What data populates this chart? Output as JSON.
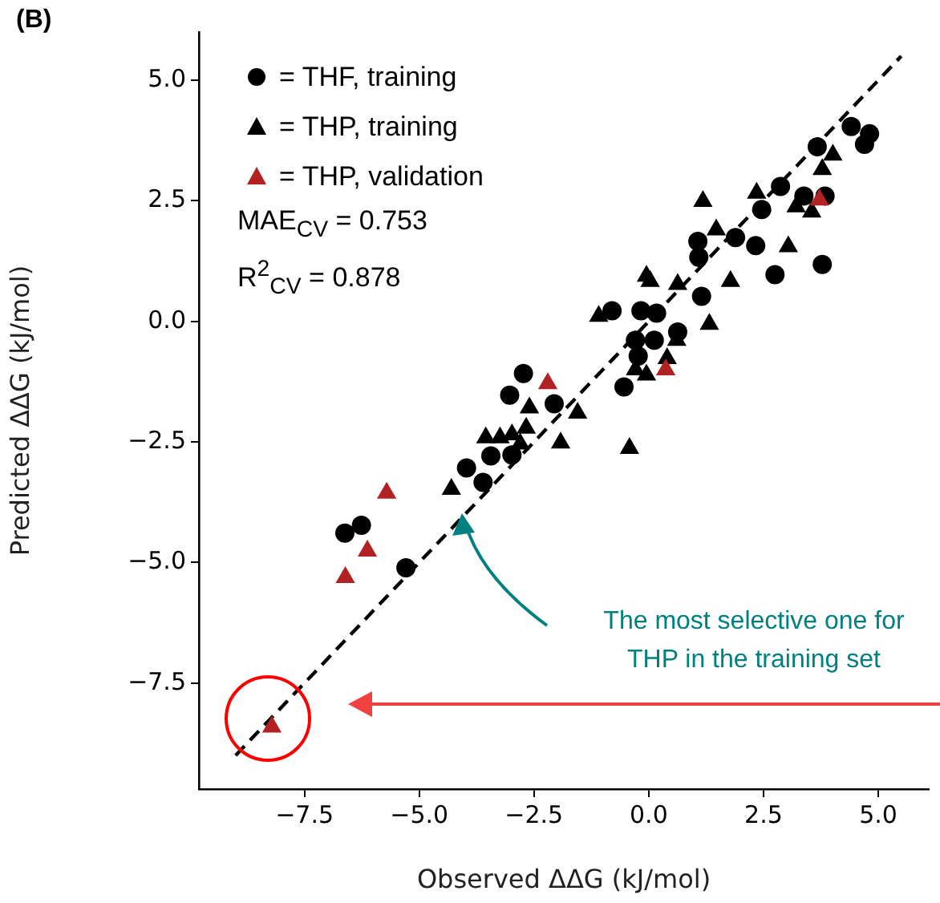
{
  "chart_data": {
    "type": "scatter",
    "title": "(B)",
    "xlabel": "Observed ΔΔG (kJ/mol)",
    "ylabel": "Predicted ΔΔG (kJ/mol)",
    "xlim": [
      -9.8,
      6.1
    ],
    "ylim": [
      -9.7,
      6.0
    ],
    "xticks": [
      {
        "value": -7.5,
        "label": "−7.5"
      },
      {
        "value": -5,
        "label": "−5.0"
      },
      {
        "value": -2.5,
        "label": "−2.5"
      },
      {
        "value": 0,
        "label": "0.0"
      },
      {
        "value": 2.5,
        "label": "2.5"
      },
      {
        "value": 5,
        "label": "5.0"
      }
    ],
    "yticks": [
      {
        "value": -7.5,
        "label": "−7.5"
      },
      {
        "value": -5,
        "label": "−5.0"
      },
      {
        "value": -2.5,
        "label": "−2.5"
      },
      {
        "value": 0,
        "label": "0.0"
      },
      {
        "value": 2.5,
        "label": "2.5"
      },
      {
        "value": 5,
        "label": "5.0"
      }
    ],
    "grid": false,
    "legend": "top left",
    "series": [
      {
        "type": "line",
        "color": "#000000",
        "line_style": "dashed",
        "marker": "none",
        "x": [
          -9,
          5.5
        ],
        "values": [
          -9,
          5.5
        ]
      },
      {
        "name": "= THF, training",
        "color": "#000000",
        "marker": "circle",
        "x": [
          4.41,
          4.81,
          4.7,
          3.67,
          2.87,
          2.46,
          3.38,
          3.84,
          1.07,
          1.89,
          2.33,
          1.09,
          2.75,
          3.78,
          1.15,
          -0.8,
          -0.17,
          0.17,
          -0.29,
          0.06,
          0.63,
          0.12,
          -0.23,
          -0.54,
          -2.06,
          -2.73,
          -3.03,
          -3.44,
          -2.98,
          -3.97,
          -3.61,
          -6.62,
          -6.26,
          -5.29
        ],
        "values": [
          4.04,
          3.89,
          3.67,
          3.62,
          2.8,
          2.32,
          2.6,
          2.6,
          1.66,
          1.74,
          1.57,
          1.33,
          0.97,
          1.18,
          0.52,
          0.22,
          0.22,
          0.17,
          -0.39,
          null,
          -0.22,
          -0.39,
          -0.72,
          -1.36,
          -1.71,
          -1.08,
          -1.53,
          -2.79,
          -2.77,
          -3.04,
          -3.34,
          -4.39,
          -4.23,
          -5.11
        ]
      },
      {
        "name": "= THP, training",
        "color": "#000000",
        "marker": "triangle",
        "x": [
          4.01,
          3.78,
          2.35,
          1.18,
          3.21,
          3.55,
          1.47,
          3.04,
          1.78,
          -0.05,
          0.03,
          0.63,
          1.32,
          -1.09,
          0.61,
          0.4,
          -0.29,
          -0.05,
          -0.42,
          -1.55,
          -1.92,
          -2.6,
          -3.55,
          -3.24,
          -2.98,
          -2.67,
          -2.8,
          -4.3
        ],
        "values": [
          3.45,
          3.15,
          2.66,
          2.49,
          2.38,
          2.27,
          1.9,
          1.55,
          0.83,
          0.94,
          0.83,
          0.77,
          -0.06,
          0.11,
          -0.39,
          -0.77,
          -1.0,
          -1.11,
          -2.63,
          -1.9,
          -2.52,
          -1.79,
          -2.41,
          -2.41,
          -2.35,
          -2.21,
          -2.54,
          -3.48
        ]
      },
      {
        "name": "= THP, validation",
        "color": "#b22222",
        "marker": "triangle",
        "x": [
          3.72,
          0.37,
          -2.2,
          -5.71,
          -6.13,
          -6.61,
          -8.21
        ],
        "values": [
          2.52,
          -1.0,
          -1.29,
          -3.56,
          -4.76,
          -5.31,
          -8.41
        ]
      }
    ],
    "annotations": [
      "MAE$_{CV}$ = 0.753",
      "R$^{2}$$_{CV}$ = 0.878",
      "The most selective one for THP in the training set"
    ]
  }
}
